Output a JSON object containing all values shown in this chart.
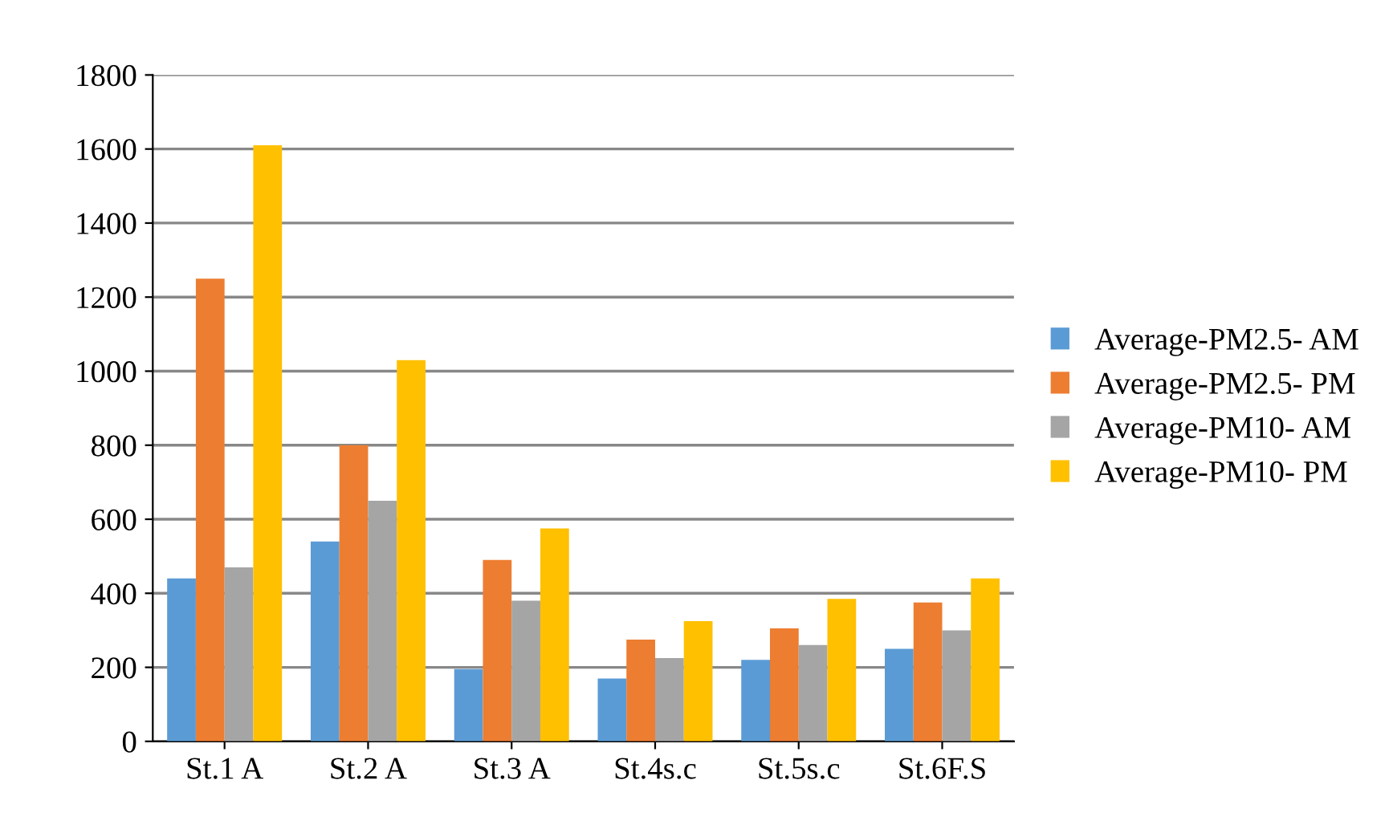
{
  "chart_data": {
    "type": "bar",
    "categories": [
      "St.1 A",
      "St.2 A",
      "St.3 A",
      "St.4s.c",
      "St.5s.c",
      "St.6F.S"
    ],
    "series": [
      {
        "name": "Average-PM2.5- AM",
        "color": "#5b9bd5",
        "values": [
          440,
          540,
          195,
          170,
          220,
          250
        ]
      },
      {
        "name": "Average-PM2.5- PM",
        "color": "#ed7d31",
        "values": [
          1250,
          800,
          490,
          275,
          305,
          375
        ]
      },
      {
        "name": "Average-PM10- AM",
        "color": "#a5a5a5",
        "values": [
          470,
          650,
          380,
          225,
          260,
          300
        ]
      },
      {
        "name": "Average-PM10- PM",
        "color": "#ffc000",
        "values": [
          1610,
          1030,
          575,
          325,
          385,
          440
        ]
      }
    ],
    "ylim": [
      0,
      1800
    ],
    "yticks": [
      0,
      200,
      400,
      600,
      800,
      1000,
      1200,
      1400,
      1600,
      1800
    ],
    "grid": "y",
    "legend": "right"
  }
}
